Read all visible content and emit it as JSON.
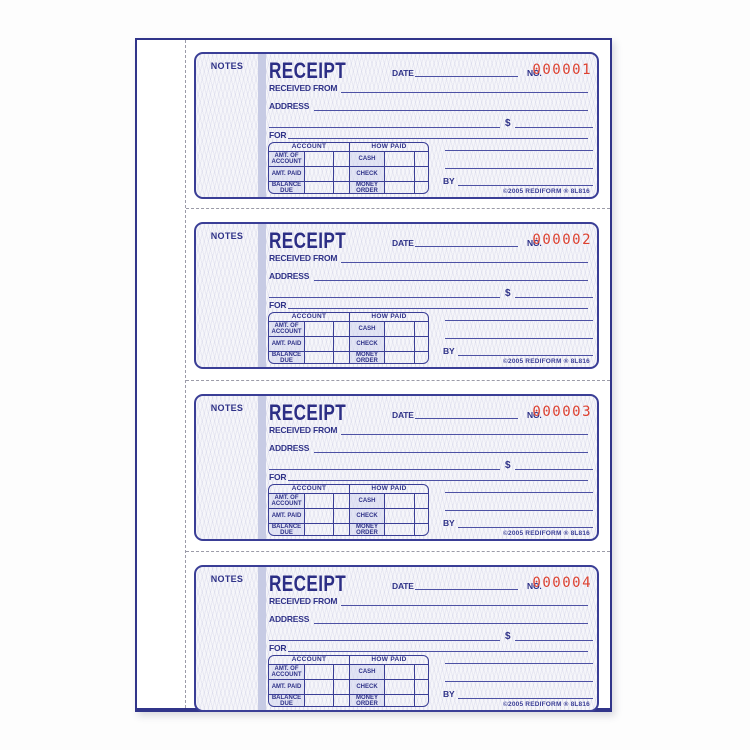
{
  "product": {
    "description": "Carbonless money receipt book with four numbered receipt forms"
  },
  "form": {
    "notes_label": "NOTES",
    "title": "RECEIPT",
    "date_label": "DATE",
    "no_label": "NO.",
    "received_from_label": "RECEIVED FROM",
    "address_label": "ADDRESS",
    "dollar_sign": "$",
    "for_label": "FOR",
    "by_label": "BY",
    "footer": "©2005 REDIFORM ® 8L816",
    "table": {
      "account_header": "ACCOUNT",
      "how_paid_header": "HOW PAID",
      "rows": [
        [
          "AMT. OF ACCOUNT",
          "CASH"
        ],
        [
          "AMT. PAID",
          "CHECK"
        ],
        [
          "BALANCE DUE",
          "MONEY ORDER"
        ]
      ]
    }
  },
  "receipts": [
    {
      "number": "000001"
    },
    {
      "number": "000002"
    },
    {
      "number": "000003"
    },
    {
      "number": "000004"
    }
  ],
  "colors": {
    "navy": "#2f3288",
    "red_number": "#dd4130",
    "band": "#c7cbe4",
    "page_edge": "#31358a"
  }
}
